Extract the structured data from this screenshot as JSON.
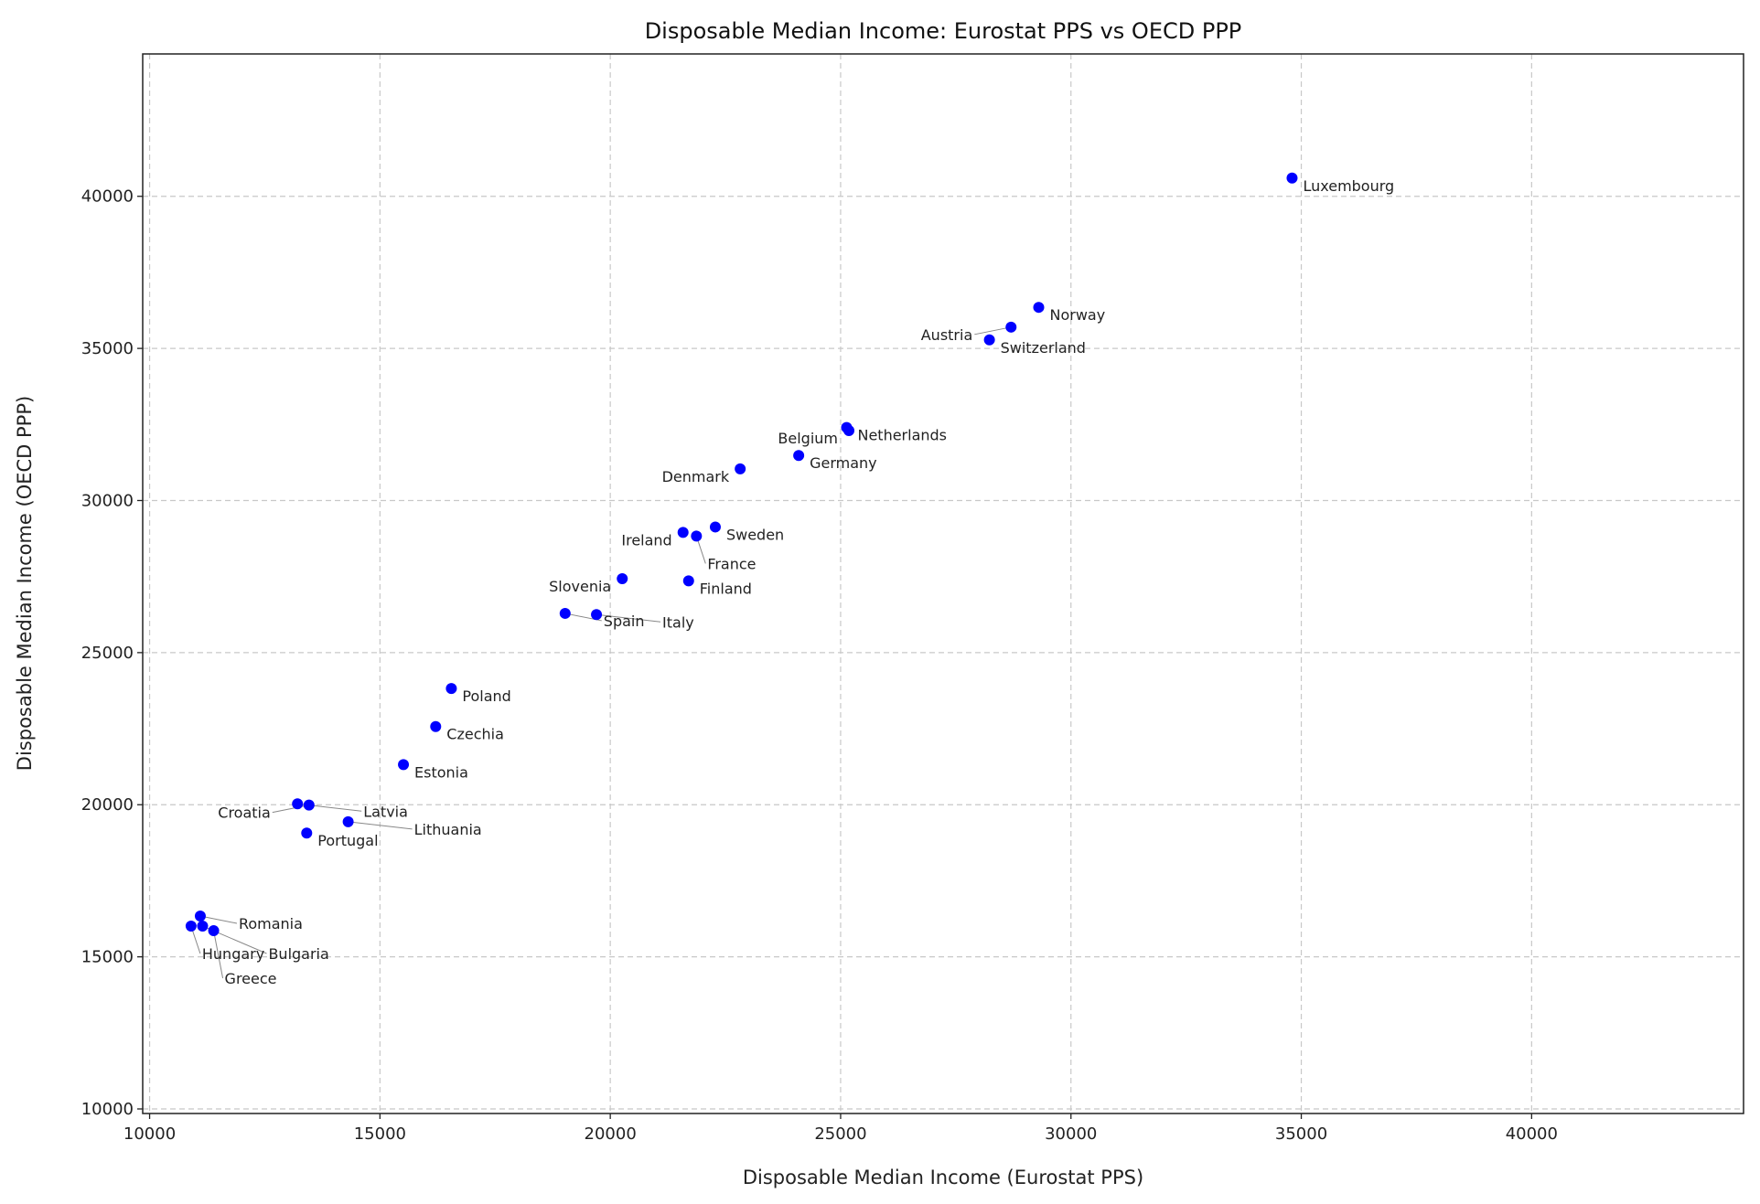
{
  "chart_data": {
    "type": "scatter",
    "title": "Disposable Median Income: Eurostat PPS vs OECD PPP",
    "xlabel": "Disposable Median Income (Eurostat PPS)",
    "ylabel": "Disposable Median Income (OECD PPP)",
    "xlim": [
      9850,
      44600
    ],
    "ylim": [
      9850,
      44680
    ],
    "xticks": [
      10000,
      15000,
      20000,
      25000,
      30000,
      35000,
      40000
    ],
    "yticks": [
      10000,
      15000,
      20000,
      25000,
      30000,
      35000,
      40000
    ],
    "grid": true,
    "point_color": "#0000ff",
    "points": [
      {
        "label": "Luxembourg",
        "x": 34800,
        "y": 40600
      },
      {
        "label": "Norway",
        "x": 29300,
        "y": 36350
      },
      {
        "label": "Austria",
        "x": 28700,
        "y": 35700
      },
      {
        "label": "Switzerland",
        "x": 28230,
        "y": 35280
      },
      {
        "label": "Netherlands",
        "x": 25130,
        "y": 32400
      },
      {
        "label": "Belgium",
        "x": 25180,
        "y": 32300
      },
      {
        "label": "Germany",
        "x": 24090,
        "y": 31480
      },
      {
        "label": "Denmark",
        "x": 22820,
        "y": 31040
      },
      {
        "label": "Sweden",
        "x": 22280,
        "y": 29130
      },
      {
        "label": "Ireland",
        "x": 21580,
        "y": 28950
      },
      {
        "label": "France",
        "x": 21870,
        "y": 28830
      },
      {
        "label": "Slovenia",
        "x": 20260,
        "y": 27430
      },
      {
        "label": "Finland",
        "x": 21700,
        "y": 27360
      },
      {
        "label": "Spain",
        "x": 19020,
        "y": 26290
      },
      {
        "label": "Italy",
        "x": 19700,
        "y": 26250
      },
      {
        "label": "Poland",
        "x": 16550,
        "y": 23820
      },
      {
        "label": "Czechia",
        "x": 16210,
        "y": 22570
      },
      {
        "label": "Estonia",
        "x": 15510,
        "y": 21320
      },
      {
        "label": "Latvia",
        "x": 13210,
        "y": 20030
      },
      {
        "label": "Croatia",
        "x": 13460,
        "y": 19990
      },
      {
        "label": "Lithuania",
        "x": 14310,
        "y": 19440
      },
      {
        "label": "Portugal",
        "x": 13410,
        "y": 19070
      },
      {
        "label": "Romania",
        "x": 11100,
        "y": 16340
      },
      {
        "label": "Hungary",
        "x": 10900,
        "y": 16010
      },
      {
        "label": "Bulgaria",
        "x": 11150,
        "y": 16010
      },
      {
        "label": "Greece",
        "x": 11390,
        "y": 15860
      }
    ]
  }
}
